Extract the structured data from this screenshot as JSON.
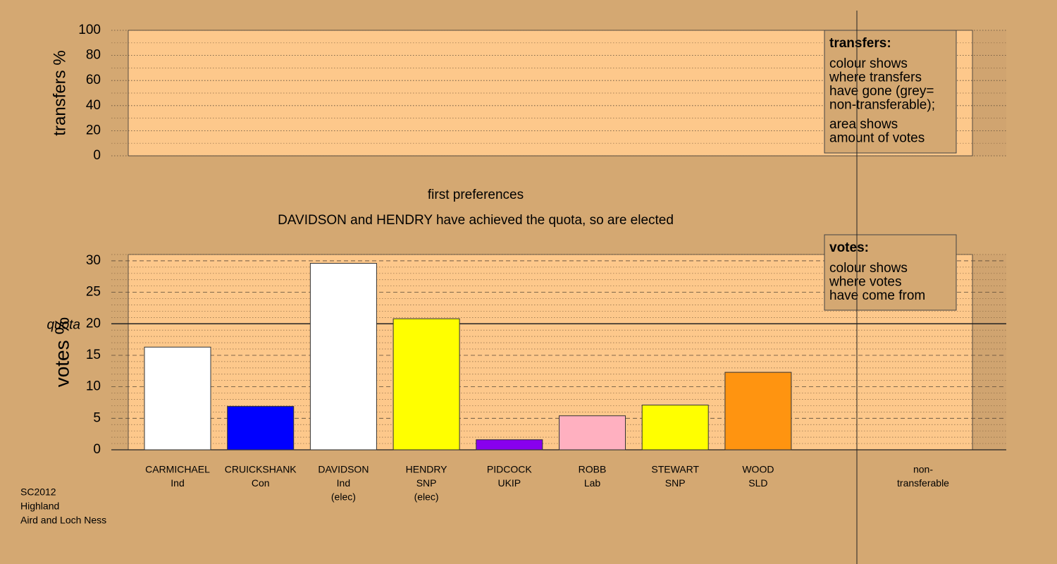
{
  "chart_data": [
    {
      "type": "empty",
      "ylabel": "transfers %",
      "ylim": [
        0,
        100
      ],
      "yticks": [
        0,
        20,
        40,
        60,
        80,
        100
      ],
      "minor_yticks": [
        10,
        30,
        50,
        70,
        90
      ],
      "note": {
        "title": "transfers:",
        "paragraphs": [
          [
            "colour shows",
            "where transfers",
            "have gone (grey=",
            "non-transferable);"
          ],
          [
            "area shows",
            "amount of votes"
          ]
        ]
      }
    },
    {
      "type": "bar",
      "title": "first preferences",
      "subtitle": "DAVIDSON and HENDRY have achieved the quota, so are elected",
      "ylabel": "votes %",
      "ylim": [
        0,
        31
      ],
      "yticks": [
        0,
        5,
        10,
        15,
        20,
        25,
        30
      ],
      "minor_yticks": [
        1,
        2,
        3,
        4,
        6,
        7,
        8,
        9,
        11,
        12,
        13,
        14,
        16,
        17,
        18,
        19,
        21,
        22,
        23,
        24,
        26,
        27,
        28,
        29,
        31
      ],
      "quota": {
        "value": 20,
        "label": "quota"
      },
      "categories": [
        {
          "name": "CARMICHAEL",
          "party": "Ind"
        },
        {
          "name": "CRUICKSHANK",
          "party": "Con"
        },
        {
          "name": "DAVIDSON",
          "party": "Ind",
          "status": "(elec)"
        },
        {
          "name": "HENDRY",
          "party": "SNP",
          "status": "(elec)"
        },
        {
          "name": "PIDCOCK",
          "party": "UKIP"
        },
        {
          "name": "ROBB",
          "party": "Lab"
        },
        {
          "name": "STEWART",
          "party": "SNP"
        },
        {
          "name": "WOOD",
          "party": "SLD"
        }
      ],
      "values": [
        16.3,
        6.9,
        29.6,
        20.8,
        1.6,
        5.4,
        7.1,
        12.3
      ],
      "colors": [
        "#ffffff",
        "#0000ff",
        "#ffffff",
        "#ffff00",
        "#8800ee",
        "#ffb0c0",
        "#ffff00",
        "#ff9410"
      ],
      "nontransferable": [
        "non-",
        "transferable"
      ],
      "note": {
        "title": "votes:",
        "paragraphs": [
          [
            "colour shows",
            "where votes",
            "have come from"
          ]
        ]
      }
    }
  ],
  "footer": [
    "SC2012",
    "Highland",
    "Aird and Loch Ness"
  ]
}
